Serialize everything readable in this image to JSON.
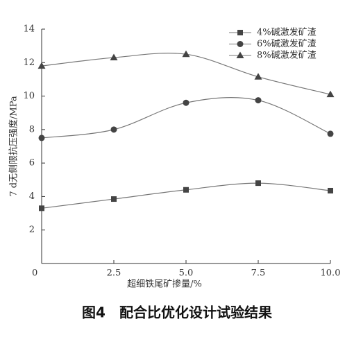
{
  "chart_data": {
    "type": "line",
    "x": [
      0,
      2.5,
      5,
      7.5,
      10
    ],
    "series": [
      {
        "name": "4%碱激发矿渣",
        "marker": "square",
        "color": "#444",
        "values": [
          3.3,
          3.85,
          4.4,
          4.8,
          4.35
        ]
      },
      {
        "name": "6%碱激发矿渣",
        "marker": "circle",
        "color": "#444",
        "values": [
          7.5,
          8.0,
          9.6,
          9.75,
          7.75
        ]
      },
      {
        "name": "8%碱激发矿渣",
        "marker": "triangle",
        "color": "#444",
        "values": [
          11.8,
          12.3,
          12.5,
          11.15,
          10.1
        ]
      }
    ],
    "xlim": [
      0,
      10
    ],
    "xticks": [
      0,
      2.5,
      {
        "value": 5,
        "label": "5.0"
      },
      7.5,
      {
        "value": 10,
        "label": "10.0"
      }
    ],
    "ylim": [
      0,
      14
    ],
    "yticks": [
      2,
      4,
      6,
      8,
      10,
      12,
      14
    ],
    "xlabel": "超细铁尾矿掺量/%",
    "ylabel": "7 d无侧限抗压强度/MPa",
    "caption": "图4　配合比优化设计试验结果",
    "smooth": true,
    "legend": "upper right"
  }
}
